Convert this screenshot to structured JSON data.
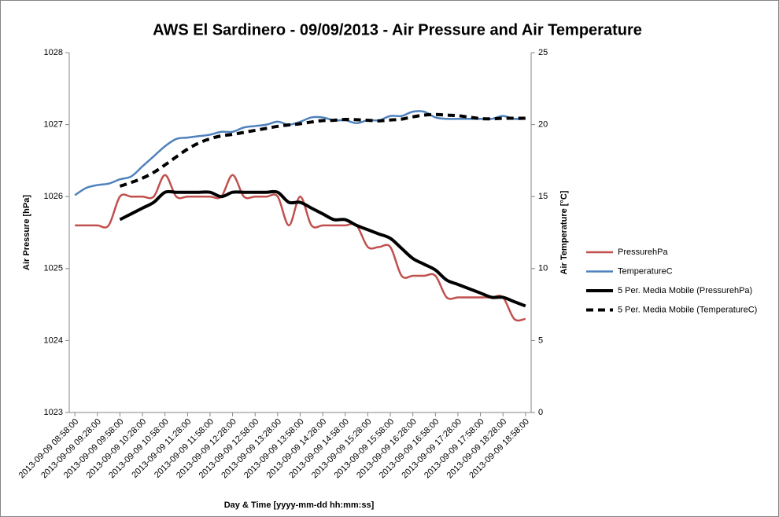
{
  "chart_data": {
    "type": "line",
    "title": "AWS El Sardinero - 09/09/2013 - Air Pressure and Air Temperature",
    "x_label": "Day & Time [yyyy-mm-dd hh:mm:ss]",
    "y_label": "Air Pressure [hPa]",
    "y2_label": "Air Temperature [°C]",
    "categories": [
      "2013-09-09 08:58:00",
      null,
      "2013-09-09 09:28:00",
      null,
      "2013-09-09 09:58:00",
      null,
      "2013-09-09 10:28:00",
      null,
      "2013-09-09 10:58:00",
      null,
      "2013-09-09 11:28:00",
      null,
      "2013-09-09 11:58:00",
      null,
      "2013-09-09 12:28:00",
      null,
      "2013-09-09 12:58:00",
      null,
      "2013-09-09 13:28:00",
      null,
      "2013-09-09 13:58:00",
      null,
      "2013-09-09 14:28:00",
      null,
      "2013-09-09 14:58:00",
      null,
      "2013-09-09 15:28:00",
      null,
      "2013-09-09 15:58:00",
      null,
      "2013-09-09 16:28:00",
      null,
      "2013-09-09 16:58:00",
      null,
      "2013-09-09 17:28:00",
      null,
      "2013-09-09 17:58:00",
      null,
      "2013-09-09 18:28:00",
      null,
      "2013-09-09 18:58:00"
    ],
    "series": [
      {
        "name": "PressurehPa",
        "color": "#c0504d",
        "line_style": "solid",
        "axis": "y",
        "values": [
          1025.6,
          1025.6,
          1025.6,
          1025.6,
          1026.0,
          1026.0,
          1026.0,
          1026.0,
          1026.3,
          1026.0,
          1026.0,
          1026.0,
          1026.0,
          1026.0,
          1026.3,
          1026.0,
          1026.0,
          1026.0,
          1026.0,
          1025.6,
          1026.0,
          1025.6,
          1025.6,
          1025.6,
          1025.6,
          1025.6,
          1025.3,
          1025.3,
          1025.3,
          1024.9,
          1024.9,
          1024.9,
          1024.9,
          1024.6,
          1024.6,
          1024.6,
          1024.6,
          1024.6,
          1024.6,
          1024.3,
          1024.3
        ]
      },
      {
        "name": "TemperatureC",
        "color": "#4f81bd",
        "line_style": "solid",
        "axis": "y2",
        "values": [
          15.1,
          15.6,
          15.8,
          15.9,
          16.2,
          16.4,
          17.1,
          17.8,
          18.5,
          19.0,
          19.1,
          19.2,
          19.3,
          19.5,
          19.5,
          19.8,
          19.9,
          20.0,
          20.2,
          20.0,
          20.2,
          20.5,
          20.5,
          20.3,
          20.3,
          20.1,
          20.3,
          20.3,
          20.6,
          20.6,
          20.9,
          20.9,
          20.5,
          20.4,
          20.4,
          20.4,
          20.4,
          20.4,
          20.6,
          20.4,
          20.4
        ]
      },
      {
        "name": "5 Per. Media Mobile (PressurehPa)",
        "color": "#000000",
        "line_style": "solid",
        "axis": "y",
        "values": [
          null,
          null,
          null,
          null,
          1025.68,
          1025.76,
          1025.84,
          1025.92,
          1026.06,
          1026.06,
          1026.06,
          1026.06,
          1026.06,
          1026.0,
          1026.06,
          1026.06,
          1026.06,
          1026.06,
          1026.06,
          1025.92,
          1025.92,
          1025.84,
          1025.76,
          1025.68,
          1025.68,
          1025.6,
          1025.54,
          1025.48,
          1025.42,
          1025.28,
          1025.14,
          1025.06,
          1024.98,
          1024.84,
          1024.78,
          1024.72,
          1024.66,
          1024.6,
          1024.6,
          1024.54,
          1024.48
        ]
      },
      {
        "name": "5 Per. Media Mobile (TemperatureC)",
        "color": "#000000",
        "line_style": "dashed",
        "axis": "y2",
        "values": [
          null,
          null,
          null,
          null,
          15.72,
          15.98,
          16.28,
          16.68,
          17.2,
          17.76,
          18.3,
          18.72,
          19.02,
          19.22,
          19.32,
          19.46,
          19.6,
          19.74,
          19.88,
          19.98,
          20.06,
          20.18,
          20.28,
          20.3,
          20.36,
          20.34,
          20.3,
          20.26,
          20.32,
          20.38,
          20.54,
          20.66,
          20.7,
          20.66,
          20.62,
          20.52,
          20.42,
          20.4,
          20.44,
          20.44,
          20.44
        ]
      }
    ],
    "ylim": [
      1023,
      1028
    ],
    "yticks": [
      1023,
      1024,
      1025,
      1026,
      1027,
      1028
    ],
    "y2lim": [
      0,
      25
    ],
    "y2ticks": [
      0,
      5,
      10,
      15,
      20,
      25
    ],
    "grid": false,
    "smooth": true,
    "legend": "right"
  }
}
